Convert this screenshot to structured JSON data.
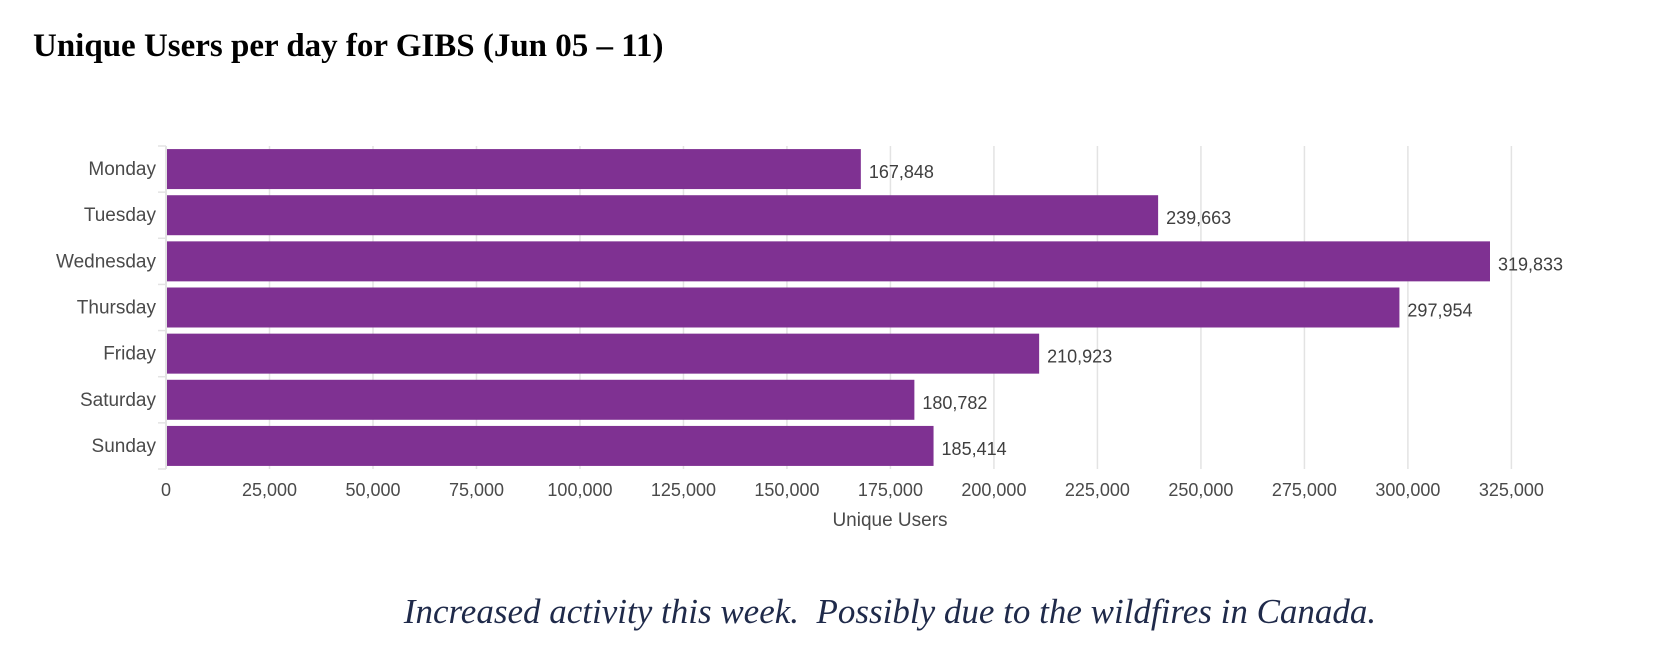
{
  "page": {
    "title": "Unique Users per day for GIBS (Jun 05 – 11)",
    "caption": "Increased activity this week.  Possibly due to the wildfires in Canada."
  },
  "colors": {
    "bar": "#7f3192",
    "grid": "#e3e3e3",
    "axis_text": "#4a4a4a",
    "value_text": "#3f3f3f"
  },
  "chart_data": {
    "type": "bar",
    "orientation": "horizontal",
    "title": "",
    "xlabel": "Unique Users",
    "ylabel": "",
    "categories": [
      "Monday",
      "Tuesday",
      "Wednesday",
      "Thursday",
      "Friday",
      "Saturday",
      "Sunday"
    ],
    "values": [
      167848,
      239663,
      319833,
      297954,
      210923,
      180782,
      185414
    ],
    "value_labels": [
      "167,848",
      "239,663",
      "319,833",
      "297,954",
      "210,923",
      "180,782",
      "185,414"
    ],
    "xlim": [
      0,
      335000
    ],
    "x_ticks": [
      0,
      25000,
      50000,
      75000,
      100000,
      125000,
      150000,
      175000,
      200000,
      225000,
      250000,
      275000,
      300000,
      325000
    ],
    "x_tick_labels": [
      "0",
      "25,000",
      "50,000",
      "75,000",
      "100,000",
      "125,000",
      "150,000",
      "175,000",
      "200,000",
      "225,000",
      "250,000",
      "275,000",
      "300,000",
      "325,000"
    ],
    "grid": true,
    "legend": "none"
  }
}
